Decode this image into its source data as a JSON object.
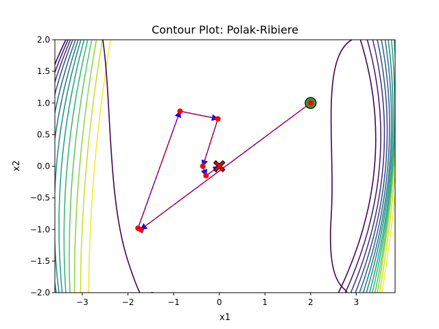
{
  "chart_data": {
    "type": "line",
    "title": "Contour Plot: Polak-Ribiere",
    "xlabel": "x1",
    "ylabel": "x2",
    "xlim": [
      -3.6,
      3.85
    ],
    "ylim": [
      -2.0,
      2.0
    ],
    "grid": false,
    "legend": "none",
    "x_ticks": [
      -3,
      -2,
      -1,
      0,
      1,
      2,
      3
    ],
    "x_tick_labels": [
      "−3",
      "−2",
      "−1",
      "0",
      "1",
      "2",
      "3"
    ],
    "y_ticks": [
      -2.0,
      -1.5,
      -1.0,
      -0.5,
      0.0,
      0.5,
      1.0,
      1.5,
      2.0
    ],
    "y_tick_labels": [
      "−2.0",
      "−1.5",
      "−1.0",
      "−0.5",
      "0.0",
      "0.5",
      "1.0",
      "1.5",
      "2.0"
    ],
    "colormap": "viridis",
    "contour_levels_x1": [
      2.85,
      3.0,
      3.12,
      3.22,
      3.31,
      3.39,
      3.46,
      3.53,
      3.59,
      3.65,
      3.7,
      3.75,
      3.8
    ],
    "contour_levels_neg_x1": [
      -3.6,
      -3.55,
      -3.5,
      -3.45,
      -3.39,
      -3.33,
      -3.27,
      -3.2,
      -3.12,
      -3.03,
      -2.93,
      -2.8,
      -2.62
    ],
    "path": {
      "x": [
        2.0,
        -1.72,
        -1.78,
        -0.86,
        -0.03,
        -0.36,
        -0.29,
        0.0
      ],
      "y": [
        1.0,
        -1.0,
        -0.98,
        0.87,
        0.75,
        0.0,
        -0.15,
        0.0
      ]
    },
    "start_point": [
      2.0,
      1.0
    ],
    "optimum": [
      0.0,
      0.0
    ],
    "colors": {
      "path_line": "#ff0000",
      "arrow": "#0000ff",
      "points": "#ff0000",
      "start_marker": "#2ca02c",
      "optimum_marker": "#ff0000",
      "contour_low": "#440154",
      "contour_high": "#fde725"
    }
  }
}
